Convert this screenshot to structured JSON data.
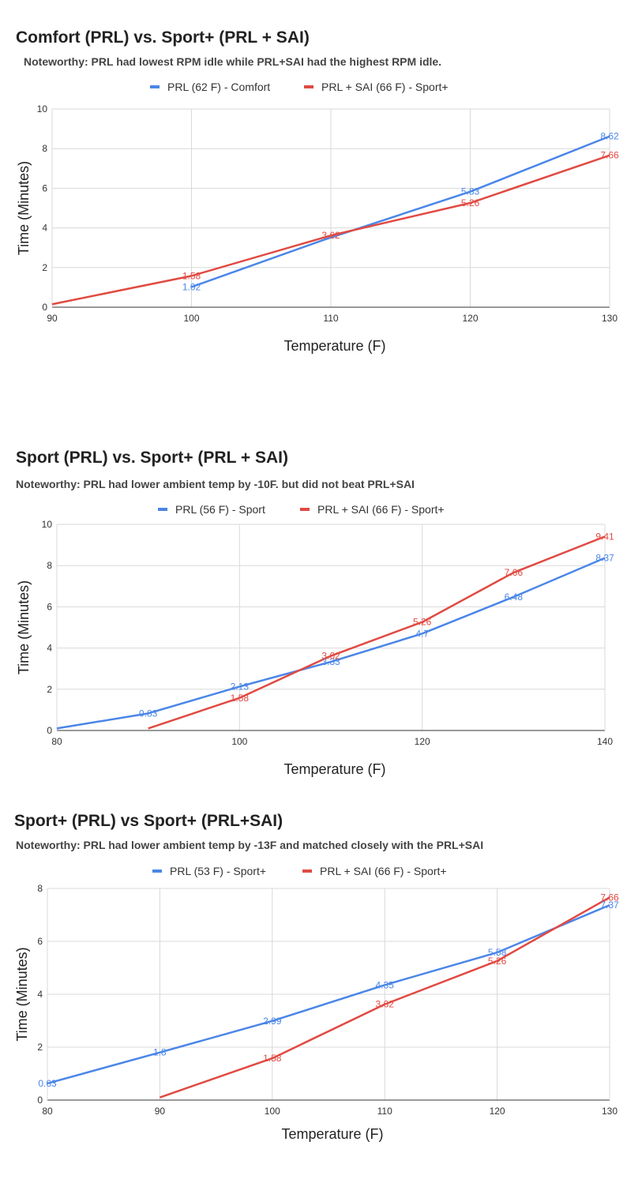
{
  "chart_data": [
    {
      "type": "line",
      "title": "Comfort (PRL) vs. Sport+ (PRL + SAI)",
      "subtitle": "Noteworthy: PRL had lowest RPM idle while PRL+SAI had the highest RPM idle.",
      "xlabel": "Temperature (F)",
      "ylabel": "Time (Minutes)",
      "xlim": [
        90,
        130
      ],
      "ylim": [
        0,
        10
      ],
      "xticks": [
        "90",
        "100",
        "110",
        "120",
        "130"
      ],
      "yticks": [
        "0",
        "2",
        "4",
        "6",
        "8",
        "10"
      ],
      "grid": true,
      "legend_position": "top",
      "series": [
        {
          "name": "PRL (62 F) - Comfort",
          "color": "#4a86e8",
          "points": [
            [
              100,
              1.02
            ],
            [
              109.5,
              3.4
            ],
            [
              120,
              5.83
            ],
            [
              130,
              8.62
            ]
          ],
          "labels": [
            "1.02",
            "",
            "5.83",
            "8.62"
          ]
        },
        {
          "name": "PRL + SAI (66 F) - Sport+",
          "color": "#e04a42",
          "points": [
            [
              90,
              0.15
            ],
            [
              100,
              1.58
            ],
            [
              110,
              3.62
            ],
            [
              120,
              5.26
            ],
            [
              130,
              7.66
            ]
          ],
          "labels": [
            "",
            "1.58",
            "3.62",
            "5.26",
            "7.66"
          ]
        }
      ]
    },
    {
      "type": "line",
      "title": "Sport (PRL) vs. Sport+ (PRL + SAI)",
      "subtitle": "Noteworthy: PRL had lower ambient temp by -10F. but did not beat PRL+SAI",
      "xlabel": "Temperature (F)",
      "ylabel": "Time (Minutes)",
      "xlim": [
        80,
        140
      ],
      "ylim": [
        0,
        10
      ],
      "xticks": [
        "80",
        "100",
        "120",
        "140"
      ],
      "yticks": [
        "0",
        "2",
        "4",
        "6",
        "8",
        "10"
      ],
      "grid": true,
      "legend_position": "top",
      "series": [
        {
          "name": "PRL (56 F) - Sport",
          "color": "#4a86e8",
          "points": [
            [
              80,
              0.1
            ],
            [
              90,
              0.83
            ],
            [
              100,
              2.13
            ],
            [
              110,
              3.33
            ],
            [
              120,
              4.7
            ],
            [
              130,
              6.48
            ],
            [
              140,
              8.37
            ]
          ],
          "labels": [
            "",
            "0.83",
            "2.13",
            "3.33",
            "4.7",
            "6.48",
            "8.37"
          ]
        },
        {
          "name": "PRL + SAI (66 F) - Sport+",
          "color": "#e04a42",
          "points": [
            [
              90,
              0.1
            ],
            [
              100,
              1.58
            ],
            [
              110,
              3.62
            ],
            [
              120,
              5.26
            ],
            [
              130,
              7.66
            ],
            [
              140,
              9.41
            ]
          ],
          "labels": [
            "",
            "1.58",
            "3.62",
            "5.26",
            "7.66",
            "9.41"
          ]
        }
      ]
    },
    {
      "type": "line",
      "title": "Sport+ (PRL) vs Sport+ (PRL+SAI)",
      "subtitle": "Noteworthy: PRL had lower ambient temp by -13F  and matched closely with the PRL+SAI",
      "xlabel": "Temperature (F)",
      "ylabel": "Time (Minutes)",
      "xlim": [
        80,
        130
      ],
      "ylim": [
        0,
        8
      ],
      "xticks": [
        "80",
        "90",
        "100",
        "110",
        "120",
        "130"
      ],
      "yticks": [
        "0",
        "2",
        "4",
        "6",
        "8"
      ],
      "grid": true,
      "legend_position": "top",
      "series": [
        {
          "name": "PRL (53 F) - Sport+",
          "color": "#4a86e8",
          "points": [
            [
              80,
              0.63
            ],
            [
              90,
              1.8
            ],
            [
              100,
              2.99
            ],
            [
              110,
              4.35
            ],
            [
              120,
              5.58
            ],
            [
              130,
              7.37
            ]
          ],
          "labels": [
            "0.63",
            "1.8",
            "2.99",
            "4.35",
            "5.58",
            "7.37"
          ]
        },
        {
          "name": "PRL + SAI (66 F) - Sport+",
          "color": "#e04a42",
          "points": [
            [
              90,
              0.1
            ],
            [
              100,
              1.58
            ],
            [
              110,
              3.62
            ],
            [
              120,
              5.26
            ],
            [
              130,
              7.66
            ]
          ],
          "labels": [
            "",
            "1.58",
            "3.62",
            "5.26",
            "7.66"
          ]
        }
      ]
    }
  ]
}
